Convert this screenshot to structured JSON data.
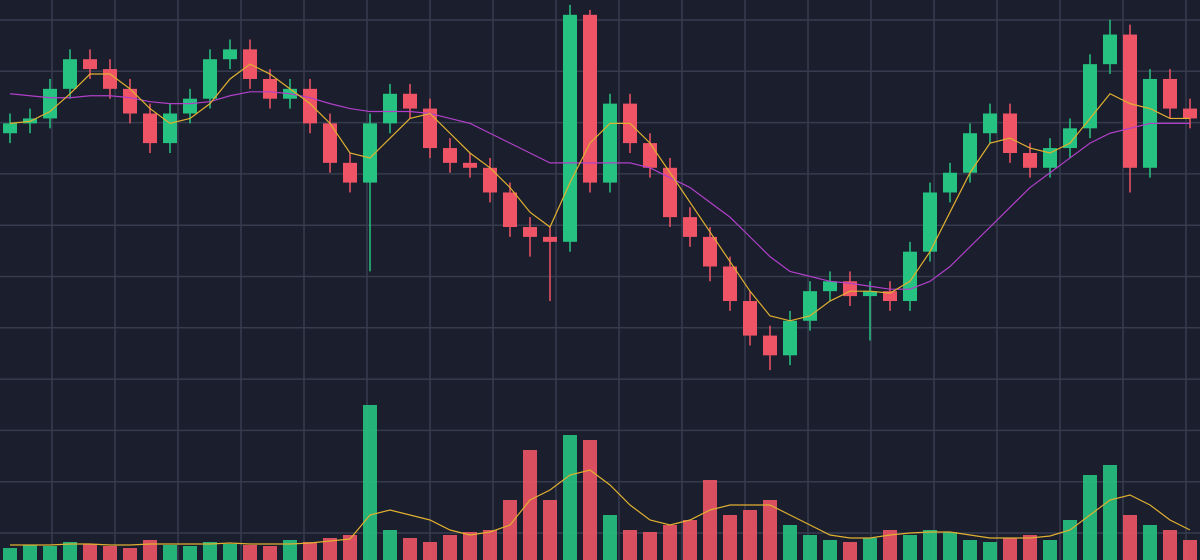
{
  "chart_data": {
    "type": "candlestick",
    "open": [
      430,
      440,
      445,
      475,
      505,
      495,
      475,
      450,
      420,
      450,
      465,
      505,
      515,
      485,
      465,
      475,
      440,
      400,
      380,
      440,
      470,
      455,
      415,
      400,
      395,
      370,
      335,
      325,
      320,
      550,
      380,
      460,
      420,
      395,
      345,
      325,
      295,
      260,
      225,
      205,
      240,
      270,
      280,
      265,
      270,
      260,
      310,
      370,
      390,
      430,
      450,
      410,
      395,
      415,
      435,
      500,
      530,
      395,
      485,
      455
    ],
    "high": [
      450,
      455,
      485,
      515,
      515,
      505,
      485,
      460,
      460,
      475,
      515,
      525,
      525,
      495,
      485,
      485,
      450,
      410,
      450,
      480,
      480,
      465,
      425,
      410,
      405,
      380,
      345,
      335,
      560,
      555,
      470,
      470,
      430,
      405,
      355,
      335,
      305,
      270,
      235,
      250,
      280,
      290,
      290,
      280,
      280,
      320,
      380,
      400,
      440,
      460,
      460,
      420,
      425,
      445,
      510,
      545,
      540,
      495,
      495,
      465
    ],
    "low": [
      420,
      430,
      435,
      465,
      485,
      465,
      440,
      410,
      410,
      440,
      455,
      495,
      475,
      455,
      455,
      430,
      390,
      370,
      290,
      430,
      445,
      405,
      390,
      385,
      360,
      325,
      305,
      260,
      310,
      370,
      370,
      410,
      385,
      335,
      315,
      280,
      250,
      215,
      190,
      195,
      230,
      260,
      255,
      220,
      250,
      250,
      300,
      360,
      380,
      420,
      400,
      385,
      385,
      405,
      425,
      490,
      370,
      385,
      445,
      435
    ],
    "close": [
      440,
      445,
      475,
      505,
      495,
      475,
      450,
      420,
      450,
      465,
      505,
      515,
      485,
      465,
      475,
      440,
      400,
      380,
      440,
      470,
      455,
      415,
      400,
      395,
      370,
      335,
      325,
      320,
      550,
      380,
      460,
      420,
      395,
      345,
      325,
      295,
      260,
      225,
      205,
      240,
      270,
      280,
      265,
      270,
      260,
      310,
      370,
      390,
      430,
      450,
      410,
      395,
      415,
      435,
      500,
      530,
      395,
      485,
      455,
      445
    ],
    "volume": [
      12,
      15,
      14,
      18,
      16,
      14,
      12,
      20,
      15,
      14,
      18,
      16,
      15,
      14,
      20,
      18,
      22,
      25,
      155,
      30,
      22,
      18,
      25,
      28,
      30,
      60,
      110,
      60,
      125,
      120,
      45,
      30,
      28,
      35,
      40,
      80,
      45,
      50,
      60,
      35,
      25,
      20,
      18,
      22,
      30,
      25,
      30,
      28,
      20,
      18,
      22,
      25,
      20,
      40,
      85,
      95,
      45,
      35,
      30,
      20
    ],
    "ma_fast": [
      440,
      442,
      452,
      470,
      490,
      490,
      475,
      455,
      440,
      445,
      460,
      485,
      500,
      490,
      475,
      460,
      440,
      410,
      405,
      425,
      445,
      450,
      430,
      410,
      395,
      375,
      350,
      335,
      380,
      420,
      440,
      440,
      420,
      390,
      360,
      330,
      300,
      270,
      245,
      240,
      245,
      260,
      270,
      270,
      268,
      280,
      310,
      350,
      390,
      420,
      425,
      415,
      410,
      420,
      445,
      470,
      460,
      455,
      445,
      445
    ],
    "ma_slow": [
      470,
      468,
      466,
      466,
      468,
      468,
      466,
      462,
      460,
      460,
      462,
      468,
      472,
      472,
      470,
      466,
      460,
      455,
      452,
      452,
      452,
      450,
      445,
      440,
      430,
      420,
      410,
      400,
      400,
      400,
      400,
      400,
      395,
      385,
      375,
      360,
      345,
      325,
      305,
      290,
      285,
      280,
      278,
      275,
      272,
      272,
      280,
      295,
      315,
      335,
      355,
      375,
      390,
      405,
      420,
      430,
      435,
      440,
      440,
      440
    ],
    "volume_ma": [
      15,
      15,
      15,
      16,
      16,
      15,
      15,
      16,
      16,
      16,
      16,
      17,
      16,
      16,
      16,
      17,
      19,
      21,
      45,
      50,
      45,
      40,
      30,
      25,
      28,
      35,
      60,
      70,
      85,
      90,
      75,
      55,
      40,
      35,
      40,
      50,
      55,
      55,
      55,
      45,
      35,
      25,
      22,
      22,
      25,
      27,
      28,
      28,
      25,
      22,
      22,
      22,
      24,
      30,
      45,
      60,
      65,
      55,
      40,
      30
    ],
    "ylim": [
      180,
      565
    ],
    "volume_ylim": [
      0,
      400
    ],
    "up_color": "#26c281",
    "down_color": "#ef5466",
    "ma_fast_color": "#e0b030",
    "ma_slow_color": "#b040c8",
    "grid": true
  }
}
